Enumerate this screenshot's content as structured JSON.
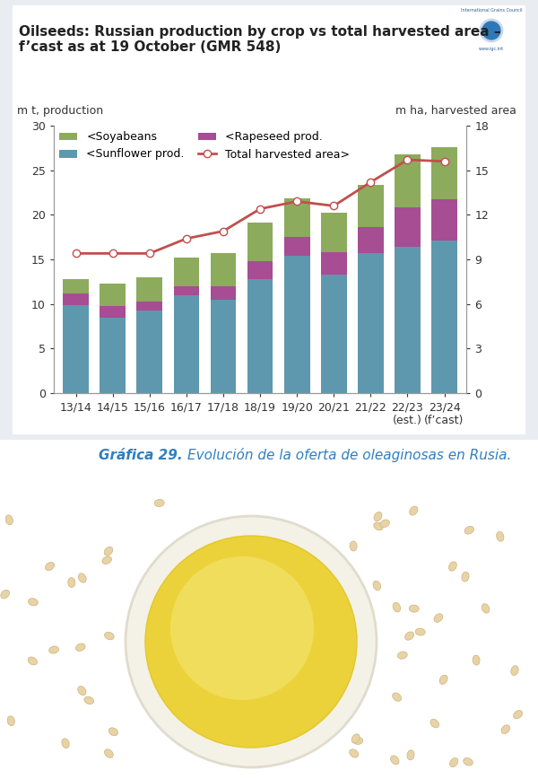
{
  "chart_data": {
    "type": "bar",
    "title": "Oilseeds: Russian production by crop vs total harvested area – f’cast as at 19 October (GMR 548)",
    "y_label": "m t, production",
    "y2_label": "m ha, harvested area",
    "categories": [
      "13/14",
      "14/15",
      "15/16",
      "16/17",
      "17/18",
      "18/19",
      "19/20",
      "20/21",
      "21/22",
      "22/23\n(est.)",
      "23/24\n(f’cast)"
    ],
    "stacked": true,
    "legend": "upper left",
    "ylim": [
      0,
      30
    ],
    "yticks": [
      0,
      5,
      10,
      15,
      20,
      25,
      30
    ],
    "y2lim": [
      0,
      18
    ],
    "y2ticks": [
      0,
      3,
      6,
      9,
      12,
      15,
      18
    ],
    "series": [
      {
        "name": "<Sunflower prod.",
        "type": "bar",
        "color": "#5e98ae",
        "values": [
          9.9,
          8.5,
          9.3,
          11.0,
          10.5,
          12.8,
          15.4,
          13.3,
          15.7,
          16.4,
          17.1
        ]
      },
      {
        "name": "<Rapeseed prod.",
        "type": "bar",
        "color": "#a64d93",
        "values": [
          1.3,
          1.3,
          1.0,
          1.0,
          1.5,
          2.0,
          2.1,
          2.5,
          2.9,
          4.4,
          4.6
        ]
      },
      {
        "name": "<Soyabeans",
        "type": "bar",
        "color": "#8cab5c",
        "values": [
          1.6,
          2.5,
          2.7,
          3.2,
          3.7,
          4.3,
          4.3,
          4.4,
          4.8,
          6.0,
          5.9
        ]
      },
      {
        "name": "Total harvested area>",
        "type": "line",
        "axis": "y2",
        "color": "#c0504d",
        "marker": "o",
        "values": [
          9.4,
          9.4,
          9.4,
          10.4,
          10.9,
          12.4,
          12.9,
          12.6,
          14.2,
          15.7,
          15.6
        ]
      }
    ]
  },
  "logo": {
    "name": "International Grains Council",
    "url": "www.igc.int"
  },
  "caption_label": "Gráfica 29.",
  "caption": "Evolución de la oferta de oleaginosas en Rusia."
}
